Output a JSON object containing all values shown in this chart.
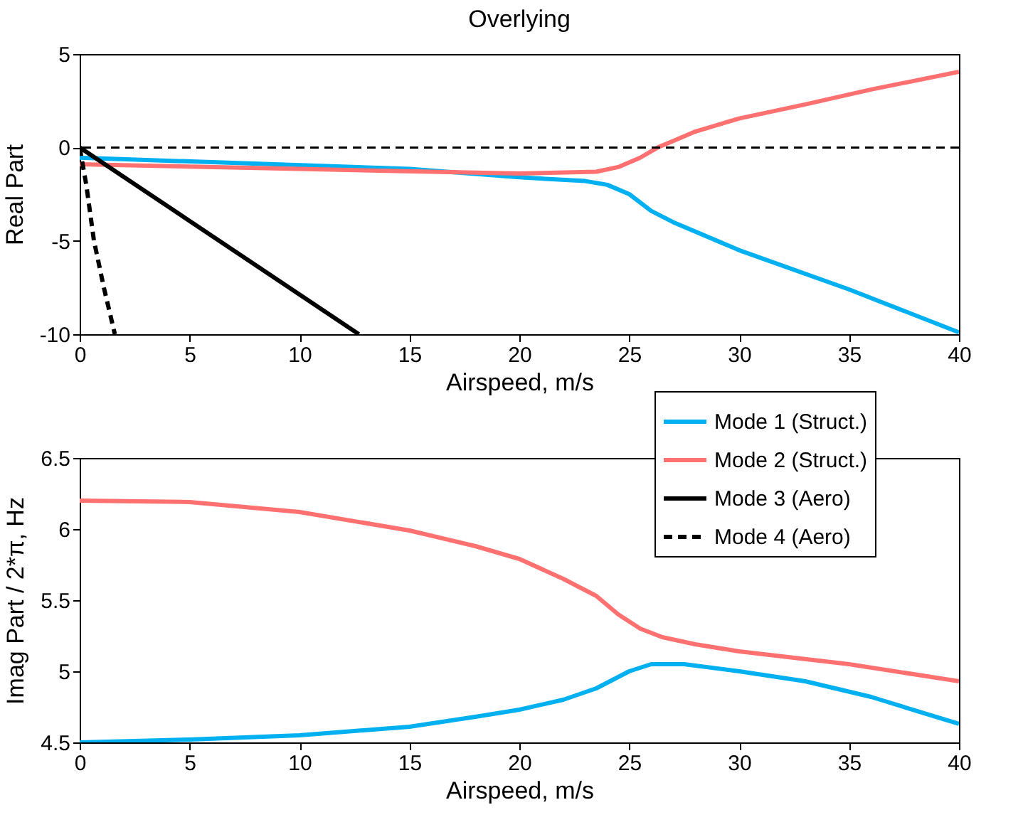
{
  "chart_data": [
    {
      "type": "line",
      "title": "Overlying",
      "xlabel": "Airspeed, m/s",
      "ylabel": "Real Part",
      "xlim": [
        0,
        40
      ],
      "xticks": [
        0,
        5,
        10,
        15,
        20,
        25,
        30,
        35,
        40
      ],
      "ylim": [
        -10,
        5
      ],
      "yticks": [
        -10,
        -5,
        0,
        5
      ],
      "grid": false,
      "legend": "bottom right",
      "ref_lines": [
        {
          "axis": "y",
          "value": 0,
          "color": "#000000",
          "line_style": "dashed"
        }
      ],
      "series": [
        {
          "name": "Mode 1 (Struct.)",
          "color": "#00b0f0",
          "line_style": "solid",
          "x": [
            0,
            15,
            20,
            23,
            24,
            25,
            26,
            27,
            30,
            35,
            40
          ],
          "values": [
            -0.55,
            -1.15,
            -1.6,
            -1.8,
            -2.0,
            -2.5,
            -3.4,
            -4.0,
            -5.5,
            -7.6,
            -9.9
          ]
        },
        {
          "name": "Mode 2 (Struct.)",
          "color": "#ff7070",
          "line_style": "solid",
          "x": [
            0,
            10,
            20,
            23.5,
            24.5,
            25.5,
            26.3,
            27,
            28,
            30,
            33,
            36,
            40
          ],
          "values": [
            -0.9,
            -1.15,
            -1.4,
            -1.3,
            -1.05,
            -0.55,
            0,
            0.35,
            0.85,
            1.55,
            2.3,
            3.1,
            4.05
          ]
        },
        {
          "name": "Mode 3 (Aero)",
          "color": "#000000",
          "line_style": "solid",
          "x": [
            0,
            12.7
          ],
          "values": [
            0,
            -10
          ]
        },
        {
          "name": "Mode 4 (Aero)",
          "color": "#000000",
          "line_style": "dashed",
          "x": [
            0,
            0.3,
            0.65,
            1.1,
            1.6
          ],
          "values": [
            0,
            -2,
            -5,
            -7.5,
            -10
          ]
        }
      ]
    },
    {
      "type": "line",
      "xlabel": "Airspeed, m/s",
      "ylabel": "Imag Part / 2*π, Hz",
      "xlim": [
        0,
        40
      ],
      "xticks": [
        0,
        5,
        10,
        15,
        20,
        25,
        30,
        35,
        40
      ],
      "ylim": [
        4.5,
        6.5
      ],
      "yticks": [
        4.5,
        5,
        5.5,
        6,
        6.5
      ],
      "grid": false,
      "series": [
        {
          "color": "#00b0f0",
          "line_style": "solid",
          "x": [
            0,
            5,
            10,
            15,
            18,
            20,
            22,
            23.5,
            25,
            26,
            27.5,
            30,
            33,
            36,
            40
          ],
          "values": [
            4.5,
            4.52,
            4.55,
            4.61,
            4.68,
            4.73,
            4.8,
            4.88,
            5.0,
            5.05,
            5.05,
            5.0,
            4.93,
            4.82,
            4.63
          ]
        },
        {
          "color": "#ff7070",
          "line_style": "solid",
          "x": [
            0,
            5,
            10,
            15,
            18,
            20,
            22,
            23.5,
            24.5,
            25.5,
            26.5,
            28,
            30,
            35,
            40
          ],
          "values": [
            6.2,
            6.19,
            6.12,
            5.99,
            5.88,
            5.79,
            5.65,
            5.53,
            5.4,
            5.3,
            5.24,
            5.19,
            5.14,
            5.05,
            4.93
          ]
        }
      ]
    }
  ]
}
